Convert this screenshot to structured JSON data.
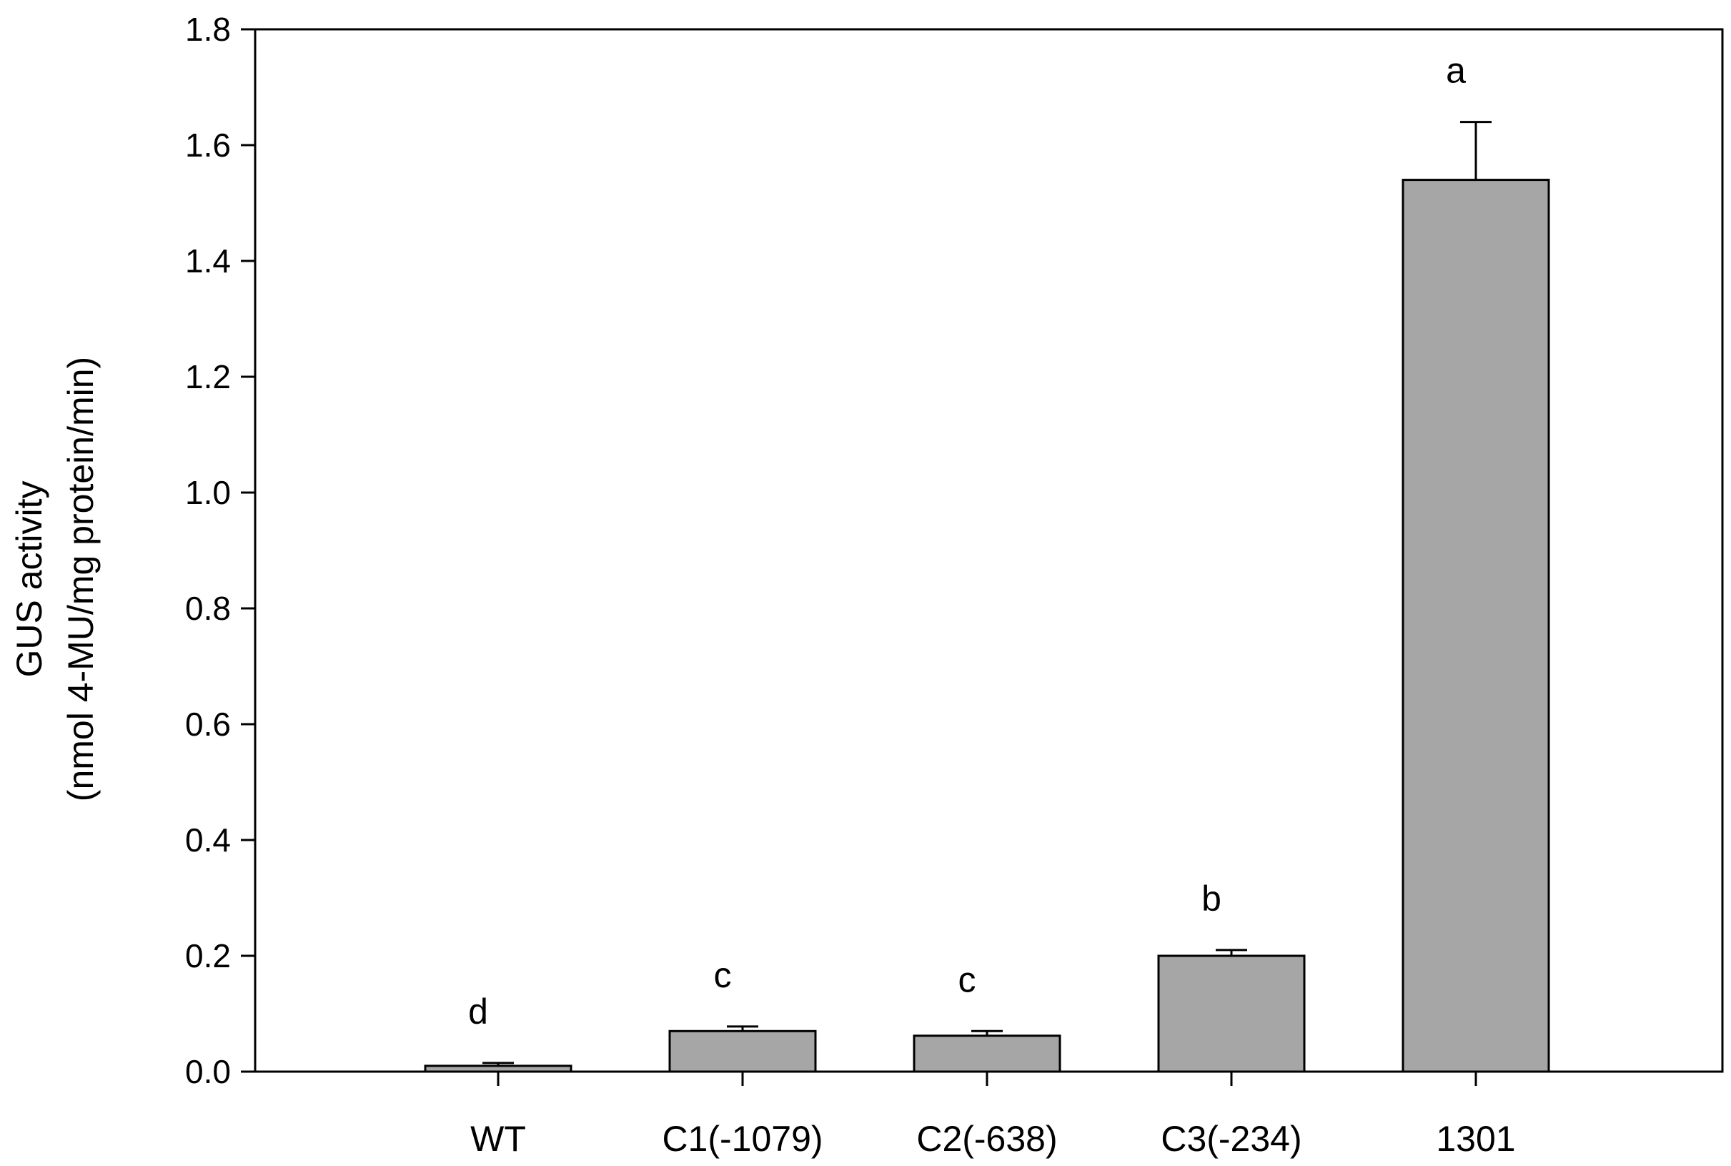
{
  "chart_data": {
    "type": "bar",
    "categories": [
      "WT",
      "C1(-1079)",
      "C2(-638)",
      "C3(-234)",
      "1301"
    ],
    "values": [
      0.01,
      0.07,
      0.062,
      0.2,
      1.54
    ],
    "errors": [
      0.005,
      0.008,
      0.008,
      0.01,
      0.1
    ],
    "significance_letters": [
      "d",
      "c",
      "c",
      "b",
      "a"
    ],
    "ylabel_line1": "GUS activity",
    "ylabel_line2": "(nmol 4-MU/mg protein/min)",
    "ylim": [
      0,
      1.8
    ],
    "yticks": [
      "0.0",
      "0.2",
      "0.4",
      "0.6",
      "0.8",
      "1.0",
      "1.2",
      "1.4",
      "1.6",
      "1.8"
    ],
    "bar_color": "#a6a6a6",
    "grid": false,
    "legend": "none"
  }
}
